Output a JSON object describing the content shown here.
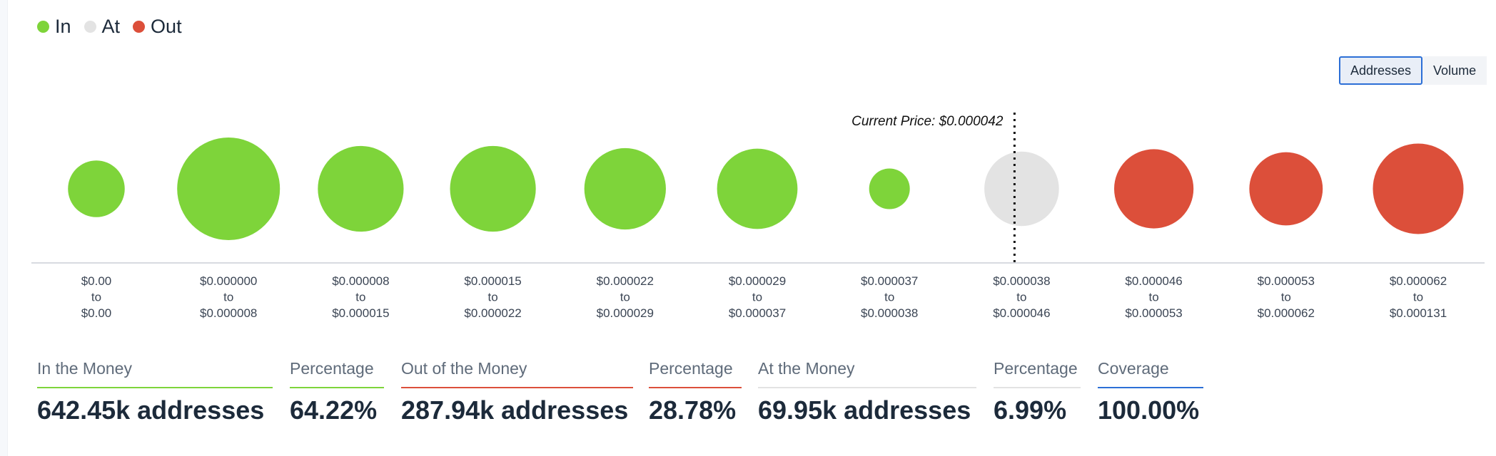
{
  "legend": [
    {
      "label": "In",
      "color": "#7ed43a"
    },
    {
      "label": "At",
      "color": "#e3e3e3"
    },
    {
      "label": "Out",
      "color": "#dc4f3a"
    }
  ],
  "toggle": {
    "addresses_label": "Addresses",
    "volume_label": "Volume",
    "selected": "Addresses"
  },
  "chart_data": {
    "type": "bubble",
    "categories": [
      [
        "$0.00",
        "to",
        "$0.00"
      ],
      [
        "$0.000000",
        "to",
        "$0.000008"
      ],
      [
        "$0.000008",
        "to",
        "$0.000015"
      ],
      [
        "$0.000015",
        "to",
        "$0.000022"
      ],
      [
        "$0.000022",
        "to",
        "$0.000029"
      ],
      [
        "$0.000029",
        "to",
        "$0.000037"
      ],
      [
        "$0.000037",
        "to",
        "$0.000038"
      ],
      [
        "$0.000038",
        "to",
        "$0.000046"
      ],
      [
        "$0.000046",
        "to",
        "$0.000053"
      ],
      [
        "$0.000053",
        "to",
        "$0.000062"
      ],
      [
        "$0.000062",
        "to",
        "$0.000131"
      ]
    ],
    "status": [
      "In",
      "In",
      "In",
      "In",
      "In",
      "In",
      "In",
      "At",
      "Out",
      "Out",
      "Out"
    ],
    "relative_size": [
      0.18,
      1.0,
      0.62,
      0.62,
      0.54,
      0.52,
      0.05,
      0.42,
      0.5,
      0.4,
      0.72
    ],
    "current_price_label": "Current Price: $0.000042",
    "current_price_bin_index": 7
  },
  "stats": [
    {
      "label": "In the Money",
      "value": "642.45k addresses",
      "color": "#7ed43a"
    },
    {
      "label": "Percentage",
      "value": "64.22%",
      "color": "#7ed43a"
    },
    {
      "label": "Out of the Money",
      "value": "287.94k addresses",
      "color": "#dc4f3a"
    },
    {
      "label": "Percentage",
      "value": "28.78%",
      "color": "#dc4f3a"
    },
    {
      "label": "At the Money",
      "value": "69.95k addresses",
      "color": "#e3e3e3"
    },
    {
      "label": "Percentage",
      "value": "6.99%",
      "color": "#e3e3e3"
    },
    {
      "label": "Coverage",
      "value": "100.00%",
      "color": "#2c6fd6"
    }
  ]
}
